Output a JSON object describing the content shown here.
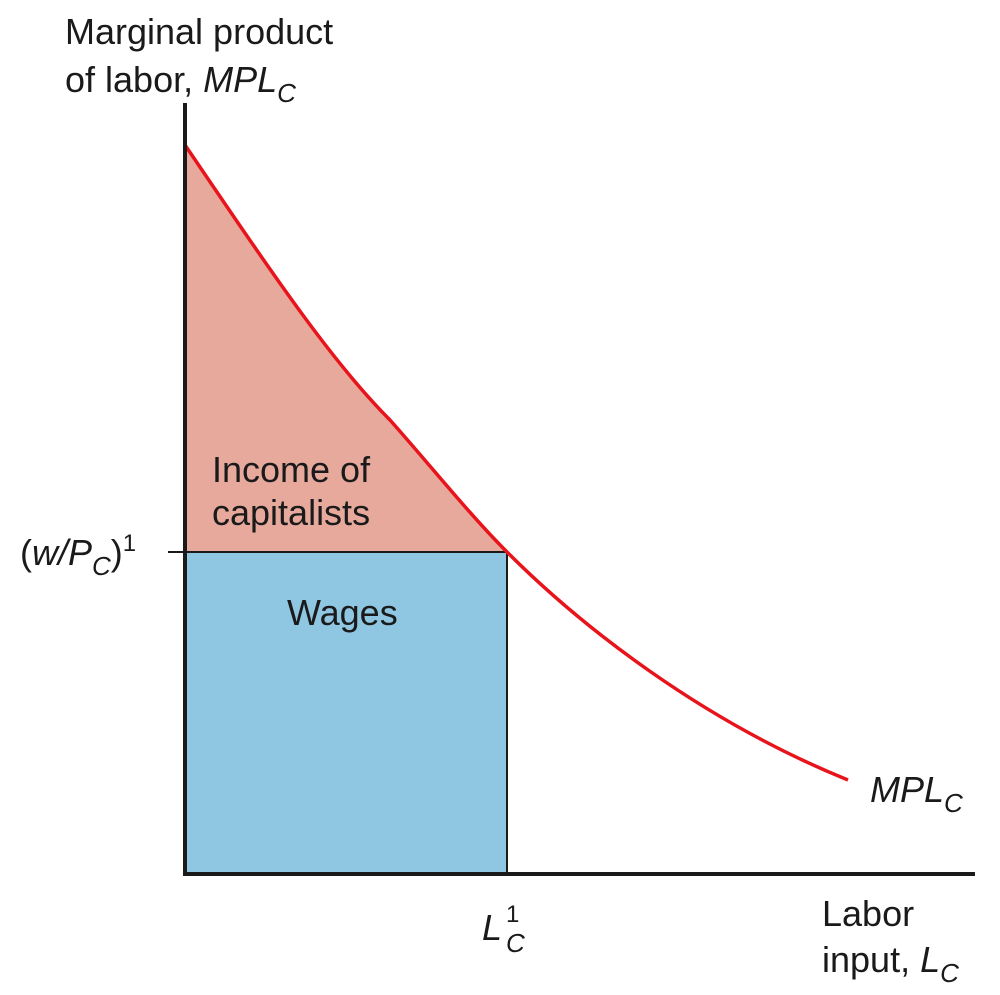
{
  "diagram": {
    "y_axis_label_line1": "Marginal product",
    "y_axis_label_line2_prefix": "of labor, ",
    "y_axis_label_line2_var": "MPL",
    "y_axis_label_line2_sub": "C",
    "x_axis_label_line1": "Labor",
    "x_axis_label_line2_prefix": "input, ",
    "x_axis_label_line2_var": "L",
    "x_axis_label_line2_sub": "C",
    "y_tick_open": "(",
    "y_tick_var": "w/P",
    "y_tick_sub": "C",
    "y_tick_close": ")",
    "y_tick_sup": "1",
    "x_tick_var": "L",
    "x_tick_sub": "C",
    "x_tick_sup": "1",
    "curve_label_var": "MPL",
    "curve_label_sub": "C",
    "region_upper_line1": "Income of",
    "region_upper_line2": "capitalists",
    "region_lower": "Wages"
  },
  "colors": {
    "curve": "#e8141b",
    "capitalists_fill": "#e8a99d",
    "wages_fill": "#8fc6e2",
    "axis": "#1a1a1a"
  }
}
